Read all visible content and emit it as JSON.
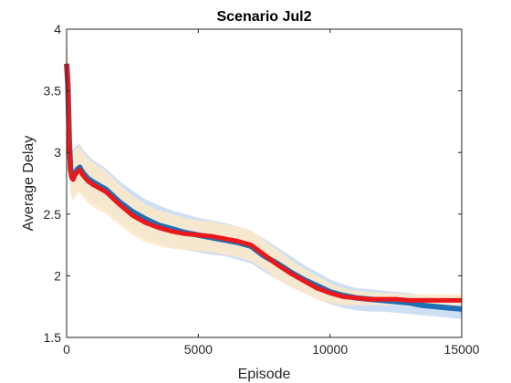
{
  "chart_data": {
    "type": "line",
    "title": "Scenario Jul2",
    "xlabel": "Episode",
    "ylabel": "Average Delay",
    "xlim": [
      0,
      15000
    ],
    "ylim": [
      1.5,
      4
    ],
    "xticks": [
      "0",
      "5000",
      "10000",
      "15000"
    ],
    "yticks": [
      "1.5",
      "2",
      "2.5",
      "3",
      "3.5",
      "4"
    ],
    "grid": false,
    "legend": "none",
    "colors": {
      "blue_line": "#1f6fb4",
      "blue_band": "#c9dcf3",
      "red_line": "#e8181b",
      "orange_band": "#fde9c8"
    },
    "series": [
      {
        "color": "#1f6fb4",
        "x": [
          0,
          50,
          100,
          150,
          200,
          250,
          300,
          400,
          500,
          600,
          800,
          1000,
          1500,
          2000,
          2500,
          3000,
          3500,
          4000,
          4500,
          5000,
          5500,
          6000,
          6500,
          7000,
          7500,
          8000,
          8500,
          9000,
          9500,
          10000,
          10500,
          11000,
          11500,
          12000,
          12500,
          13000,
          13500,
          14000,
          14500,
          15000
        ],
        "y": [
          3.72,
          3.55,
          3.1,
          2.87,
          2.8,
          2.79,
          2.83,
          2.86,
          2.88,
          2.84,
          2.79,
          2.76,
          2.7,
          2.6,
          2.52,
          2.46,
          2.41,
          2.38,
          2.35,
          2.33,
          2.31,
          2.29,
          2.27,
          2.24,
          2.16,
          2.1,
          2.03,
          1.97,
          1.92,
          1.87,
          1.84,
          1.82,
          1.81,
          1.8,
          1.79,
          1.78,
          1.76,
          1.75,
          1.74,
          1.73
        ],
        "upper": [
          3.9,
          3.7,
          3.3,
          3.04,
          3.02,
          3.02,
          3.04,
          3.06,
          3.07,
          3.03,
          2.98,
          2.94,
          2.87,
          2.77,
          2.69,
          2.62,
          2.57,
          2.53,
          2.5,
          2.47,
          2.45,
          2.43,
          2.4,
          2.36,
          2.3,
          2.23,
          2.16,
          2.09,
          2.03,
          1.97,
          1.93,
          1.9,
          1.89,
          1.88,
          1.87,
          1.86,
          1.84,
          1.83,
          1.82,
          1.81
        ],
        "lower": [
          3.5,
          3.35,
          2.9,
          2.7,
          2.64,
          2.64,
          2.66,
          2.68,
          2.7,
          2.66,
          2.62,
          2.59,
          2.53,
          2.44,
          2.36,
          2.3,
          2.26,
          2.23,
          2.21,
          2.19,
          2.17,
          2.16,
          2.13,
          2.1,
          2.03,
          1.97,
          1.91,
          1.86,
          1.81,
          1.77,
          1.74,
          1.72,
          1.71,
          1.71,
          1.7,
          1.69,
          1.68,
          1.67,
          1.66,
          1.65
        ]
      },
      {
        "color": "#e8181b",
        "x": [
          0,
          50,
          100,
          150,
          200,
          250,
          300,
          400,
          500,
          600,
          800,
          1000,
          1500,
          2000,
          2500,
          3000,
          3500,
          4000,
          4500,
          5000,
          5500,
          6000,
          6500,
          7000,
          7500,
          8000,
          8500,
          9000,
          9500,
          10000,
          10500,
          11000,
          11500,
          12000,
          12500,
          13000,
          13500,
          14000,
          14500,
          15000
        ],
        "y": [
          3.72,
          3.55,
          3.05,
          2.85,
          2.79,
          2.78,
          2.81,
          2.84,
          2.86,
          2.82,
          2.77,
          2.74,
          2.68,
          2.58,
          2.49,
          2.43,
          2.39,
          2.36,
          2.34,
          2.33,
          2.32,
          2.3,
          2.28,
          2.25,
          2.17,
          2.09,
          2.02,
          1.96,
          1.9,
          1.86,
          1.83,
          1.82,
          1.81,
          1.81,
          1.81,
          1.8,
          1.8,
          1.8,
          1.8,
          1.8
        ],
        "upper": [
          4.0,
          3.85,
          3.3,
          3.05,
          3.0,
          3.0,
          3.02,
          3.04,
          3.05,
          3.01,
          2.96,
          2.92,
          2.85,
          2.74,
          2.65,
          2.58,
          2.53,
          2.5,
          2.47,
          2.45,
          2.44,
          2.42,
          2.4,
          2.37,
          2.29,
          2.21,
          2.13,
          2.06,
          2.0,
          1.94,
          1.9,
          1.88,
          1.87,
          1.86,
          1.86,
          1.85,
          1.85,
          1.85,
          1.85,
          1.85
        ],
        "lower": [
          3.45,
          3.3,
          2.85,
          2.68,
          2.62,
          2.61,
          2.63,
          2.66,
          2.68,
          2.64,
          2.59,
          2.56,
          2.5,
          2.41,
          2.33,
          2.27,
          2.24,
          2.22,
          2.21,
          2.2,
          2.19,
          2.17,
          2.15,
          2.12,
          2.05,
          1.97,
          1.91,
          1.86,
          1.81,
          1.78,
          1.76,
          1.76,
          1.76,
          1.76,
          1.76,
          1.75,
          1.75,
          1.75,
          1.75,
          1.75
        ]
      }
    ]
  }
}
